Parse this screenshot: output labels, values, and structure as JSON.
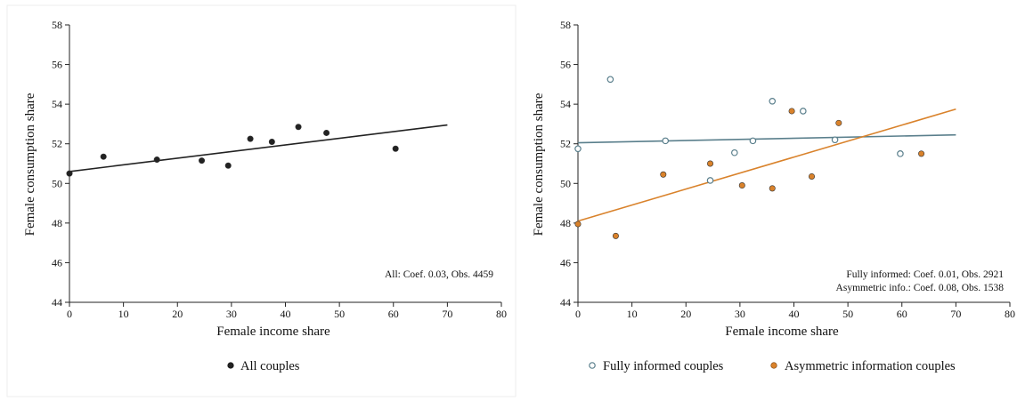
{
  "chart_data": [
    {
      "type": "scatter",
      "xlabel": "Female income share",
      "ylabel": "Female consumption share",
      "xlim": [
        0,
        80
      ],
      "ylim": [
        44,
        58
      ],
      "xticks": [
        "0",
        "10",
        "20",
        "30",
        "40",
        "50",
        "60",
        "70",
        "80"
      ],
      "yticks": [
        "44",
        "46",
        "48",
        "50",
        "52",
        "54",
        "56",
        "58"
      ],
      "grid": false,
      "annotations": [
        "All: Coef. 0.03, Obs. 4459"
      ],
      "legend": {
        "position": "bottom"
      },
      "series": [
        {
          "name": "All couples",
          "marker": "filled-circle",
          "color": "#222222",
          "points": [
            [
              0,
              50.5
            ],
            [
              6.3,
              51.35
            ],
            [
              16.2,
              51.2
            ],
            [
              24.5,
              51.15
            ],
            [
              29.4,
              50.9
            ],
            [
              33.5,
              52.25
            ],
            [
              37.5,
              52.1
            ],
            [
              42.4,
              52.85
            ],
            [
              47.6,
              52.55
            ],
            [
              60.4,
              51.75
            ]
          ],
          "fit": {
            "x": [
              0,
              70
            ],
            "y": [
              50.6,
              52.95
            ]
          }
        }
      ]
    },
    {
      "type": "scatter",
      "xlabel": "Female income share",
      "ylabel": "Female consumption share",
      "xlim": [
        0,
        80
      ],
      "ylim": [
        44,
        58
      ],
      "xticks": [
        "0",
        "10",
        "20",
        "30",
        "40",
        "50",
        "60",
        "70",
        "80"
      ],
      "yticks": [
        "44",
        "46",
        "48",
        "50",
        "52",
        "54",
        "56",
        "58"
      ],
      "grid": false,
      "annotations": [
        "Fully informed: Coef. 0.01, Obs. 2921",
        "Asymmetric info.: Coef. 0.08, Obs. 1538"
      ],
      "legend": {
        "position": "bottom"
      },
      "series": [
        {
          "name": "Fully informed couples",
          "marker": "hollow-circle",
          "color": "#5a7f8c",
          "points": [
            [
              0,
              51.75
            ],
            [
              6,
              55.25
            ],
            [
              16.2,
              52.15
            ],
            [
              24.5,
              50.15
            ],
            [
              29,
              51.55
            ],
            [
              32.4,
              52.15
            ],
            [
              36,
              54.15
            ],
            [
              41.7,
              53.65
            ],
            [
              47.6,
              52.2
            ],
            [
              59.7,
              51.5
            ]
          ],
          "fit": {
            "x": [
              0,
              70
            ],
            "y": [
              52.05,
              52.45
            ]
          }
        },
        {
          "name": "Asymmetric information couples",
          "marker": "filled-circle",
          "color": "#d9822b",
          "points": [
            [
              0,
              47.95
            ],
            [
              7,
              47.35
            ],
            [
              15.8,
              50.45
            ],
            [
              24.5,
              51
            ],
            [
              30.4,
              49.9
            ],
            [
              36,
              49.75
            ],
            [
              39.6,
              53.65
            ],
            [
              43.3,
              50.35
            ],
            [
              48.3,
              53.05
            ],
            [
              63.6,
              51.5
            ]
          ],
          "fit": {
            "x": [
              0,
              70
            ],
            "y": [
              48.1,
              53.75
            ]
          }
        }
      ]
    }
  ]
}
